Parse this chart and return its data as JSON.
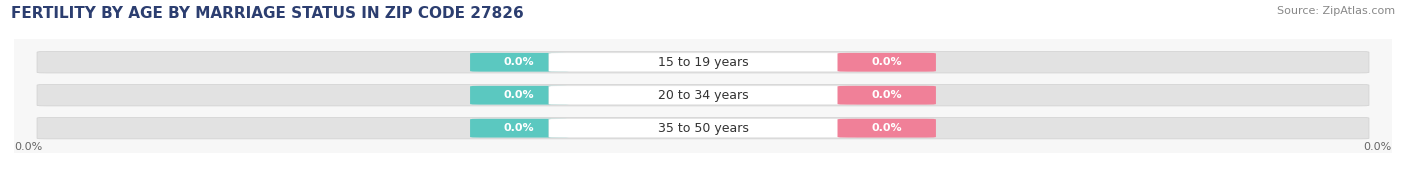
{
  "title": "FERTILITY BY AGE BY MARRIAGE STATUS IN ZIP CODE 27826",
  "source": "Source: ZipAtlas.com",
  "categories": [
    "15 to 19 years",
    "20 to 34 years",
    "35 to 50 years"
  ],
  "married_values": [
    0.0,
    0.0,
    0.0
  ],
  "unmarried_values": [
    0.0,
    0.0,
    0.0
  ],
  "married_color": "#5bc8c0",
  "unmarried_color": "#f08098",
  "bar_bg_color": "#e2e2e2",
  "chart_bg_color": "#f7f7f7",
  "fig_bg_color": "#ffffff",
  "title_fontsize": 11,
  "source_fontsize": 8,
  "label_fontsize": 8,
  "category_fontsize": 9,
  "axis_label_fontsize": 8,
  "title_color": "#2c3e70",
  "source_color": "#888888",
  "value_text_color": "#ffffff",
  "category_text_color": "#333333",
  "axis_text_color": "#666666"
}
